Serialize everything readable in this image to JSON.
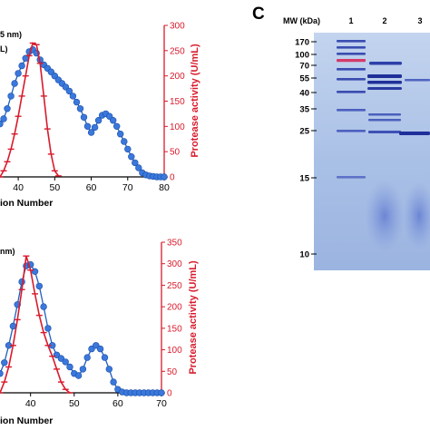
{
  "colors": {
    "blue_series": "#1f5fbf",
    "blue_marker": "#3b78dc",
    "red_series": "#d81b2c",
    "axis": "#000000",
    "red_axis": "#d81b2c",
    "gel_background": "#a9c3e8",
    "band": "#2b3d9e"
  },
  "chart_data": [
    {
      "type": "line",
      "panel": "top",
      "title_fragments": [
        "5 nm)",
        "L)"
      ],
      "xlabel_fragment": "ion Number",
      "x_ticks": [
        40,
        50,
        60,
        70,
        80
      ],
      "xlim": [
        35,
        80
      ],
      "right_ylabel": "Protease activity (U/mL)",
      "right_y_ticks": [
        0,
        50,
        100,
        150,
        200,
        250,
        300
      ],
      "right_ylim": [
        0,
        300
      ],
      "series": [
        {
          "axis": "right-scale",
          "color": "blue",
          "marker": "circle",
          "points": [
            [
              35,
              105
            ],
            [
              36,
              115
            ],
            [
              37,
              135
            ],
            [
              38,
              160
            ],
            [
              39,
              185
            ],
            [
              40,
              205
            ],
            [
              41,
              220
            ],
            [
              42,
              235
            ],
            [
              43,
              248
            ],
            [
              44,
              252
            ],
            [
              45,
              245
            ],
            [
              46,
              232
            ],
            [
              47,
              222
            ],
            [
              48,
              215
            ],
            [
              49,
              208
            ],
            [
              50,
              200
            ],
            [
              51,
              192
            ],
            [
              52,
              185
            ],
            [
              53,
              178
            ],
            [
              54,
              170
            ],
            [
              55,
              160
            ],
            [
              56,
              148
            ],
            [
              57,
              135
            ],
            [
              58,
              118
            ],
            [
              59,
              100
            ],
            [
              60,
              88
            ],
            [
              61,
              98
            ],
            [
              62,
              112
            ],
            [
              63,
              122
            ],
            [
              64,
              125
            ],
            [
              65,
              120
            ],
            [
              66,
              112
            ],
            [
              67,
              100
            ],
            [
              68,
              85
            ],
            [
              69,
              70
            ],
            [
              70,
              55
            ],
            [
              71,
              40
            ],
            [
              72,
              28
            ],
            [
              73,
              18
            ],
            [
              74,
              8
            ],
            [
              75,
              4
            ],
            [
              76,
              2
            ],
            [
              77,
              1
            ],
            [
              78,
              0
            ],
            [
              79,
              0
            ],
            [
              80,
              0
            ]
          ]
        },
        {
          "axis": "right",
          "color": "red",
          "marker": "plus",
          "points": [
            [
              35,
              0
            ],
            [
              36,
              12
            ],
            [
              37,
              30
            ],
            [
              38,
              55
            ],
            [
              39,
              85
            ],
            [
              40,
              120
            ],
            [
              41,
              160
            ],
            [
              42,
              200
            ],
            [
              43,
              240
            ],
            [
              44,
              265
            ],
            [
              45,
              262
            ],
            [
              46,
              225
            ],
            [
              47,
              160
            ],
            [
              48,
              95
            ],
            [
              49,
              45
            ],
            [
              50,
              12
            ],
            [
              51,
              2
            ]
          ]
        }
      ]
    },
    {
      "type": "line",
      "panel": "bottom",
      "title_fragments": [
        "nm)"
      ],
      "xlabel_fragment": "ion Number",
      "x_ticks": [
        40,
        50,
        60,
        70
      ],
      "xlim": [
        33,
        70
      ],
      "right_ylabel": "Protease activity (U/mL)",
      "right_y_ticks": [
        0,
        50,
        100,
        150,
        200,
        250,
        300,
        350
      ],
      "right_ylim": [
        0,
        350
      ],
      "series": [
        {
          "axis": "right-scale",
          "color": "blue",
          "marker": "circle",
          "points": [
            [
              33,
              45
            ],
            [
              34,
              70
            ],
            [
              35,
              110
            ],
            [
              36,
              155
            ],
            [
              37,
              205
            ],
            [
              38,
              258
            ],
            [
              39,
              295
            ],
            [
              40,
              298
            ],
            [
              41,
              282
            ],
            [
              42,
              248
            ],
            [
              43,
              200
            ],
            [
              44,
              150
            ],
            [
              45,
              110
            ],
            [
              46,
              88
            ],
            [
              47,
              80
            ],
            [
              48,
              72
            ],
            [
              49,
              60
            ],
            [
              50,
              45
            ],
            [
              51,
              40
            ],
            [
              52,
              55
            ],
            [
              53,
              82
            ],
            [
              54,
              102
            ],
            [
              55,
              110
            ],
            [
              56,
              102
            ],
            [
              57,
              82
            ],
            [
              58,
              55
            ],
            [
              59,
              25
            ],
            [
              60,
              8
            ],
            [
              61,
              2
            ],
            [
              62,
              0
            ],
            [
              63,
              0
            ],
            [
              64,
              0
            ],
            [
              65,
              0
            ],
            [
              66,
              0
            ],
            [
              67,
              0
            ],
            [
              68,
              0
            ],
            [
              69,
              0
            ],
            [
              70,
              0
            ]
          ]
        },
        {
          "axis": "right",
          "color": "red",
          "marker": "plus",
          "points": [
            [
              33,
              0
            ],
            [
              34,
              25
            ],
            [
              35,
              60
            ],
            [
              36,
              110
            ],
            [
              37,
              170
            ],
            [
              38,
              240
            ],
            [
              39,
              318
            ],
            [
              40,
              285
            ],
            [
              41,
              230
            ],
            [
              42,
              180
            ],
            [
              43,
              140
            ],
            [
              44,
              110
            ],
            [
              45,
              85
            ],
            [
              46,
              55
            ],
            [
              47,
              25
            ],
            [
              48,
              8
            ],
            [
              49,
              0
            ]
          ]
        }
      ]
    }
  ],
  "gel": {
    "panel_label": "C",
    "mw_header": "MW (kDa)",
    "lanes": [
      "1",
      "2",
      "3"
    ],
    "markers": [
      "170",
      "100",
      "70",
      "55",
      "40",
      "35",
      "25",
      "15",
      "10"
    ]
  }
}
